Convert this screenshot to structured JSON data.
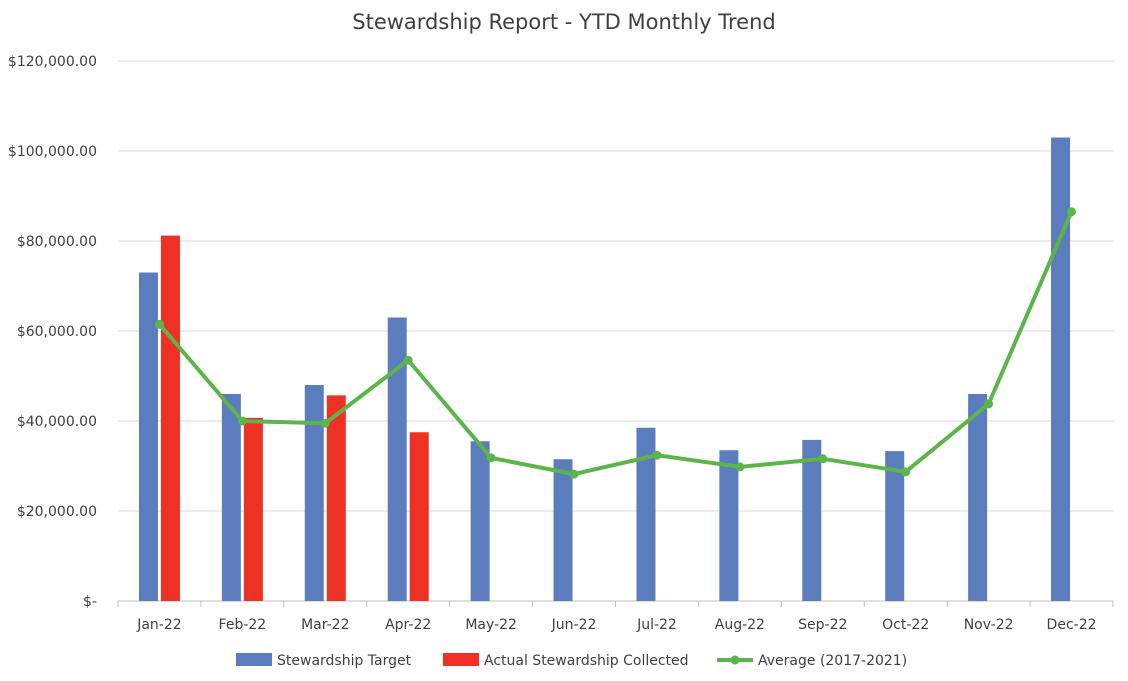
{
  "chart_data": {
    "type": "bar",
    "title": "Stewardship Report - YTD Monthly Trend",
    "xlabel": "",
    "ylabel": "",
    "categories": [
      "Jan-22",
      "Feb-22",
      "Mar-22",
      "Apr-22",
      "May-22",
      "Jun-22",
      "Jul-22",
      "Aug-22",
      "Sep-22",
      "Oct-22",
      "Nov-22",
      "Dec-22"
    ],
    "ylim": [
      0,
      120000
    ],
    "yticks": [
      0,
      20000,
      40000,
      60000,
      80000,
      100000,
      120000
    ],
    "ytick_labels": [
      "$-",
      "$20,000.00",
      "$40,000.00",
      "$60,000.00",
      "$80,000.00",
      "$100,000.00",
      "$120,000.00"
    ],
    "grid": true,
    "legend_position": "bottom",
    "series": [
      {
        "name": "Stewardship Target",
        "kind": "bar",
        "color": "#5b7dbd",
        "values": [
          73000,
          46000,
          48000,
          63000,
          35500,
          31500,
          38500,
          33500,
          35800,
          33300,
          46000,
          103000
        ]
      },
      {
        "name": "Actual Stewardship Collected",
        "kind": "bar",
        "color": "#ee3124",
        "values": [
          81200,
          40700,
          45700,
          37500,
          null,
          null,
          null,
          null,
          null,
          null,
          null,
          null
        ]
      },
      {
        "name": "Average (2017-2021)",
        "kind": "line",
        "color": "#5cb54a",
        "values": [
          61500,
          40000,
          39500,
          53500,
          31800,
          28200,
          32400,
          29800,
          31600,
          28700,
          43800,
          86500
        ]
      }
    ]
  }
}
